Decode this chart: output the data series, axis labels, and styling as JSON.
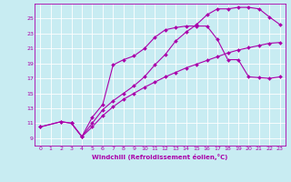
{
  "bg_color": "#c8ecf2",
  "grid_color": "#ffffff",
  "line_color": "#aa00aa",
  "xlabel": "Windchill (Refroidissement éolien,°C)",
  "xlim": [
    -0.5,
    23.5
  ],
  "ylim": [
    8.0,
    27.0
  ],
  "xticks": [
    0,
    1,
    2,
    3,
    4,
    5,
    6,
    7,
    8,
    9,
    10,
    11,
    12,
    13,
    14,
    15,
    16,
    17,
    18,
    19,
    20,
    21,
    22,
    23
  ],
  "yticks": [
    9,
    11,
    13,
    15,
    17,
    19,
    21,
    23,
    25
  ],
  "line1_x": [
    0,
    2,
    3,
    4,
    5,
    6,
    7,
    8,
    9,
    10,
    11,
    12,
    13,
    14,
    15,
    16,
    17,
    18,
    19,
    20,
    21,
    22,
    23
  ],
  "line1_y": [
    10.5,
    11.2,
    11.0,
    9.2,
    11.0,
    12.8,
    14.0,
    15.0,
    16.0,
    17.2,
    18.8,
    20.2,
    22.0,
    23.2,
    24.2,
    25.5,
    26.3,
    26.3,
    26.5,
    26.5,
    26.3,
    25.2,
    24.2
  ],
  "line2_x": [
    3,
    4,
    5,
    6,
    7,
    8,
    9,
    10,
    11,
    12,
    13,
    14,
    15,
    16,
    17,
    18,
    19,
    20,
    21,
    22,
    23
  ],
  "line2_y": [
    11.0,
    9.2,
    11.8,
    13.5,
    18.8,
    19.5,
    20.0,
    21.0,
    22.5,
    23.5,
    23.8,
    24.0,
    24.0,
    24.0,
    22.2,
    19.5,
    19.5,
    17.2,
    17.1,
    17.0,
    17.2
  ],
  "line3_x": [
    0,
    2,
    3,
    4,
    5,
    6,
    7,
    8,
    9,
    10,
    11,
    12,
    13,
    14,
    15,
    16,
    17,
    18,
    19,
    20,
    21,
    22,
    23
  ],
  "line3_y": [
    10.5,
    11.2,
    11.0,
    9.2,
    10.5,
    12.0,
    13.2,
    14.2,
    15.0,
    15.8,
    16.5,
    17.2,
    17.8,
    18.4,
    18.9,
    19.4,
    19.9,
    20.4,
    20.8,
    21.1,
    21.4,
    21.7,
    21.8
  ]
}
